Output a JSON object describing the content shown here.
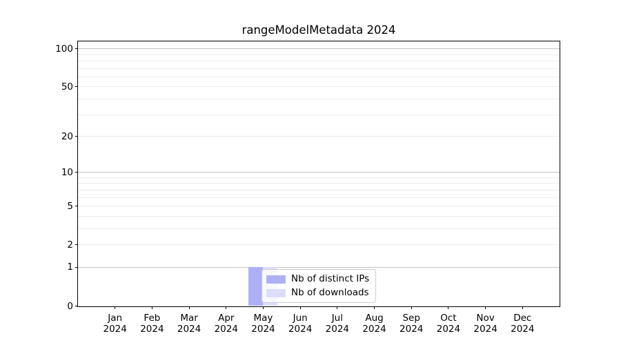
{
  "title": "rangeModelMetadata 2024",
  "chart_data": {
    "type": "bar",
    "title": "rangeModelMetadata 2024",
    "categories": [
      {
        "month": "Jan",
        "year": "2024"
      },
      {
        "month": "Feb",
        "year": "2024"
      },
      {
        "month": "Mar",
        "year": "2024"
      },
      {
        "month": "Apr",
        "year": "2024"
      },
      {
        "month": "May",
        "year": "2024"
      },
      {
        "month": "Jun",
        "year": "2024"
      },
      {
        "month": "Jul",
        "year": "2024"
      },
      {
        "month": "Aug",
        "year": "2024"
      },
      {
        "month": "Sep",
        "year": "2024"
      },
      {
        "month": "Oct",
        "year": "2024"
      },
      {
        "month": "Nov",
        "year": "2024"
      },
      {
        "month": "Dec",
        "year": "2024"
      }
    ],
    "series": [
      {
        "name": "Nb of distinct IPs",
        "color": "#aeb0f5",
        "values": [
          0,
          0,
          0,
          0,
          1,
          0,
          0,
          0,
          0,
          0,
          0,
          0
        ]
      },
      {
        "name": "Nb of downloads",
        "color": "#dcdef9",
        "values": [
          0,
          0,
          0,
          0,
          1,
          0,
          0,
          0,
          0,
          0,
          0,
          0
        ]
      }
    ],
    "xlabel": "",
    "ylabel": "",
    "y_axis": {
      "scale": "log1p",
      "tick_values": [
        0,
        1,
        2,
        5,
        10,
        20,
        50,
        100
      ],
      "major_gridlines": [
        1,
        10,
        100
      ],
      "minor_gridlines": [
        2,
        3,
        4,
        5,
        6,
        7,
        8,
        9,
        20,
        30,
        40,
        50,
        60,
        70,
        80,
        90
      ],
      "ylim": [
        0,
        113
      ]
    },
    "grid": true,
    "legend": {
      "position": "lower center-left, overlapping May bars",
      "entries": [
        "Nb of distinct IPs",
        "Nb of downloads"
      ]
    }
  },
  "colors": {
    "bar_distinct_ips": "#aeb0f5",
    "bar_downloads": "#dcdef9",
    "grid_major": "#c3c3c3",
    "grid_minor": "#ececec",
    "spine": "#000000",
    "legend_border": "#cccccc",
    "background": "#ffffff"
  }
}
